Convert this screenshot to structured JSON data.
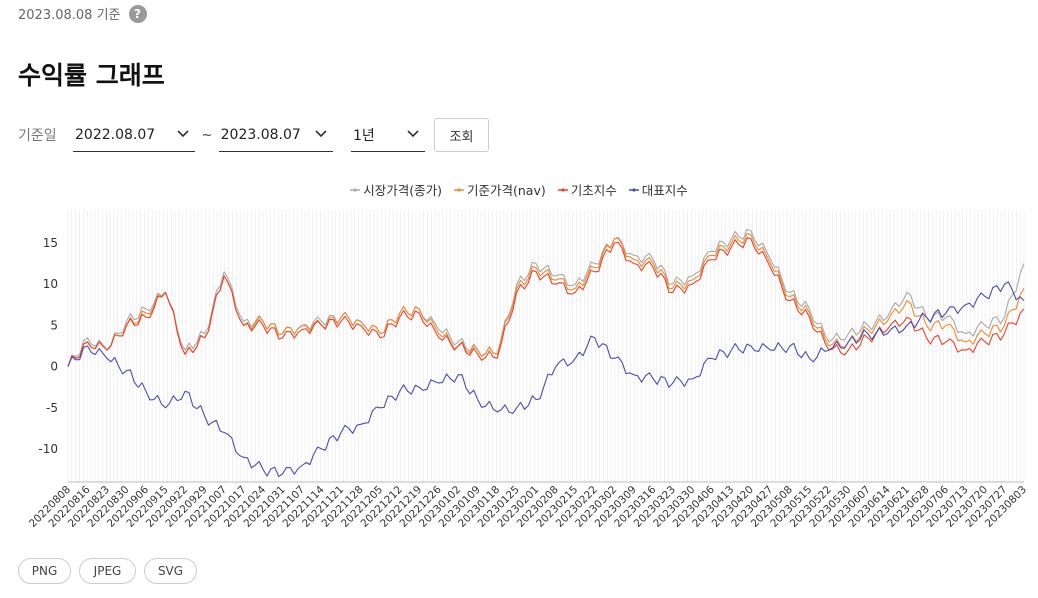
{
  "header": {
    "as_of": "2023.08.08 기준",
    "help_glyph": "?"
  },
  "title": "수익률 그래프",
  "filters": {
    "label": "기준일",
    "start_date": "2022.08.07",
    "separator": "~",
    "end_date": "2023.08.07",
    "period": "1년",
    "query_button": "조회"
  },
  "export_buttons": [
    "PNG",
    "JPEG",
    "SVG"
  ],
  "chart_data": {
    "type": "line",
    "ylim": [
      -14,
      19
    ],
    "yticks": [
      15,
      10,
      5,
      0,
      -5,
      -10
    ],
    "grid": "vertical gridline at every trading day",
    "legend_position": "top-center",
    "x_tick_labels": [
      "20220808",
      "20220816",
      "20220823",
      "20220830",
      "20220906",
      "20220915",
      "20220922",
      "20220929",
      "20221007",
      "20221017",
      "20221024",
      "20221031",
      "20221107",
      "20221114",
      "20221121",
      "20221128",
      "20221205",
      "20221212",
      "20221219",
      "20221226",
      "20230102",
      "20230109",
      "20230118",
      "20230125",
      "20230201",
      "20230208",
      "20230215",
      "20230222",
      "20230302",
      "20230309",
      "20230316",
      "20230323",
      "20230330",
      "20230406",
      "20230413",
      "20230420",
      "20230427",
      "20230508",
      "20230515",
      "20230522",
      "20230530",
      "20230607",
      "20230614",
      "20230621",
      "20230628",
      "20230706",
      "20230713",
      "20230720",
      "20230727",
      "20230803"
    ],
    "series": [
      {
        "name": "시장가격(종가)",
        "color": "#a8a8a8",
        "values": [
          0,
          3.5,
          2,
          5.5,
          7,
          9,
          2,
          4,
          11.5,
          5.5,
          5.5,
          4,
          5,
          5.5,
          6,
          5.5,
          4,
          6.5,
          7,
          4.5,
          3,
          2,
          1.5,
          10,
          12.5,
          11,
          10,
          12.5,
          15.5,
          13.5,
          13,
          10,
          11,
          14,
          15.5,
          16.5,
          13,
          9,
          7,
          3,
          4,
          5,
          6,
          9,
          6,
          6,
          4,
          5,
          6,
          12.5
        ]
      },
      {
        "name": "기준가격(nav)",
        "color": "#ef8a2e",
        "values": [
          0,
          3,
          2,
          5,
          6.5,
          9,
          1.5,
          3.5,
          11,
          5,
          5.5,
          4,
          5,
          5,
          6,
          5.5,
          4,
          6.5,
          7,
          4,
          2.5,
          2,
          1.5,
          9.5,
          12,
          10.5,
          9.5,
          12,
          15.5,
          13,
          12.5,
          9.5,
          10.5,
          13.5,
          15,
          16,
          12.5,
          8.5,
          6.5,
          2.5,
          3,
          4.5,
          5.5,
          8,
          5,
          5,
          3,
          4,
          5,
          9.5
        ]
      },
      {
        "name": "기초지수",
        "color": "#e8452a",
        "values": [
          0,
          3,
          2,
          5,
          6,
          9,
          1.5,
          3.5,
          11,
          5,
          5,
          3.5,
          4.5,
          5,
          5.5,
          5,
          3.5,
          6,
          6.5,
          3.5,
          2.5,
          1.5,
          1,
          9,
          11.5,
          10,
          9,
          11.5,
          15,
          12.5,
          12,
          9,
          10,
          13,
          14.5,
          15.5,
          12,
          8,
          6,
          2,
          2,
          3.5,
          4.5,
          6,
          3.5,
          3,
          2,
          3,
          4,
          7
        ]
      },
      {
        "name": "대표지수",
        "color": "#4b4db0",
        "values": [
          0,
          2.5,
          1,
          -0.5,
          -3,
          -5,
          -3,
          -6,
          -8,
          -11,
          -12.5,
          -13,
          -12,
          -10,
          -8,
          -7,
          -5,
          -3,
          -2.5,
          -2,
          -1,
          -4,
          -5.5,
          -5,
          -4,
          0,
          1,
          3.5,
          1,
          -1,
          -1.5,
          -2,
          -1.5,
          1,
          2,
          2.5,
          2,
          2.5,
          1,
          2,
          3,
          4,
          4,
          5,
          6,
          6.5,
          7.5,
          8.5,
          10,
          8
        ]
      }
    ]
  }
}
